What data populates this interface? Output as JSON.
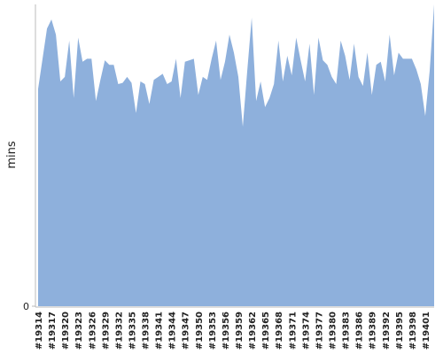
{
  "chart_data": {
    "type": "area",
    "y_label": "mins",
    "categories": [
      "#19314",
      null,
      null,
      "#19317",
      null,
      null,
      "#19320",
      null,
      null,
      "#19323",
      null,
      null,
      "#19326",
      null,
      null,
      "#19329",
      null,
      null,
      "#19332",
      null,
      null,
      "#19335",
      null,
      null,
      "#19338",
      null,
      null,
      "#19341",
      null,
      null,
      "#19344",
      null,
      null,
      "#19347",
      null,
      null,
      "#19350",
      null,
      null,
      "#19353",
      null,
      null,
      "#19356",
      null,
      null,
      "#19359",
      null,
      null,
      "#19362",
      null,
      null,
      "#19365",
      null,
      null,
      "#19368",
      null,
      null,
      "#19371",
      null,
      null,
      "#19374",
      null,
      null,
      "#19377",
      null,
      null,
      "#19380",
      null,
      null,
      "#19383",
      null,
      null,
      "#19386",
      null,
      null,
      "#19389",
      null,
      null,
      "#19392",
      null,
      null,
      "#19395",
      null,
      null,
      "#19398",
      null,
      null,
      "#19401",
      null,
      null
    ],
    "values": [
      72,
      82,
      92,
      95,
      90,
      74.5,
      76,
      88,
      69,
      89,
      81,
      82,
      82,
      68,
      75,
      81.5,
      80,
      80,
      73.6,
      74,
      76,
      74,
      64,
      74.5,
      73.6,
      67,
      75,
      76,
      77,
      73.6,
      74.5,
      82,
      69,
      81,
      81.5,
      82,
      70,
      76,
      75,
      82,
      88,
      75,
      81,
      90,
      84,
      76,
      59.5,
      78,
      95.6,
      68,
      74.5,
      66,
      69,
      73.6,
      88,
      74.5,
      83,
      76.5,
      89,
      81.5,
      74.5,
      87,
      70,
      89,
      81.5,
      80,
      76,
      73.6,
      88,
      83,
      75,
      87,
      76,
      73,
      84,
      70,
      80,
      81,
      74.5,
      90,
      76.5,
      84,
      82,
      82,
      82,
      78.5,
      73.6,
      63,
      78,
      100
    ],
    "color": "#8eb0dc",
    "ylim": [
      0,
      100
    ],
    "yticks": [
      0
    ]
  }
}
